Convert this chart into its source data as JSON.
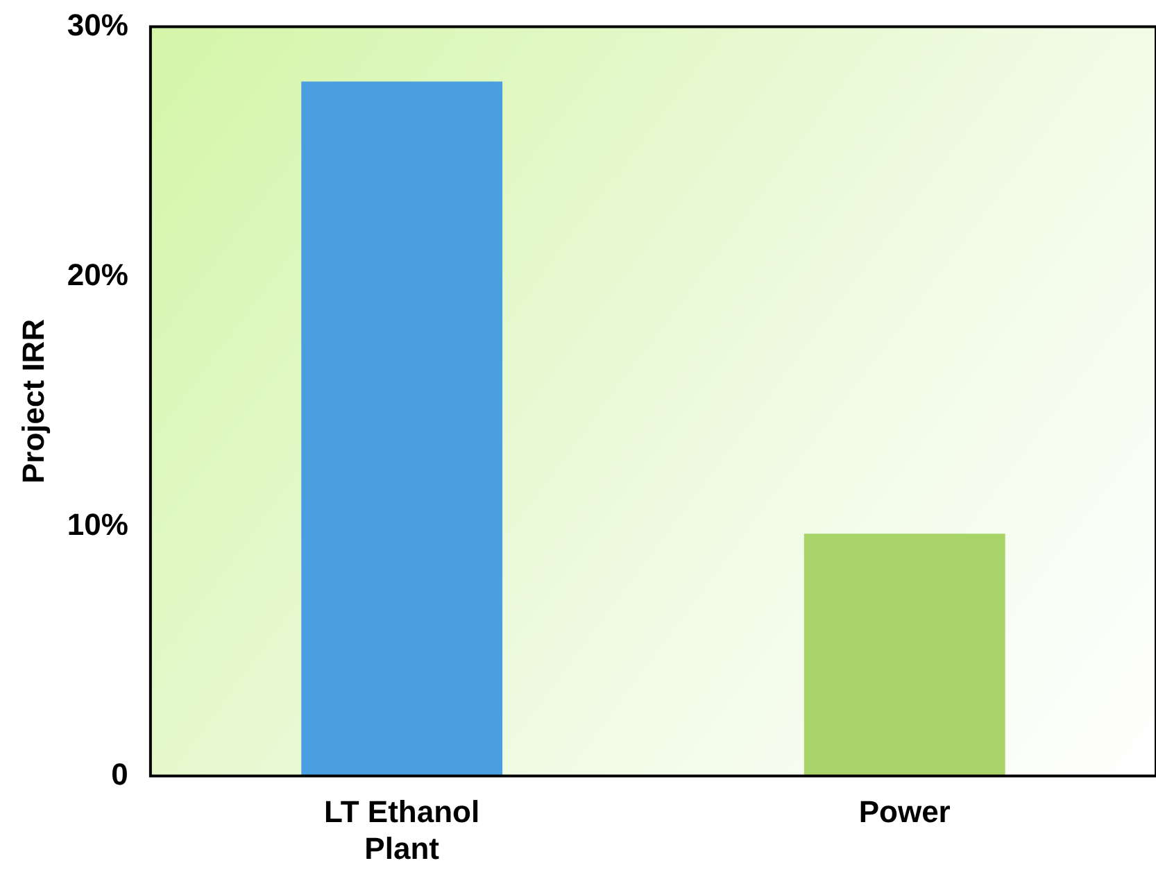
{
  "chart_data": {
    "type": "bar",
    "ylabel": "Project IRR",
    "categories": [
      "LT Ethanol Plant",
      "Power"
    ],
    "values": [
      27.8,
      9.7
    ],
    "colors": [
      "#4a9fe0",
      "#a8d46a"
    ],
    "ylim": [
      0,
      30
    ],
    "yticks": [
      0,
      {
        "value": 10,
        "label": "10%"
      },
      {
        "value": 20,
        "label": "20%"
      },
      {
        "value": 30,
        "label": "30%"
      }
    ],
    "grid": false,
    "legend": false
  }
}
